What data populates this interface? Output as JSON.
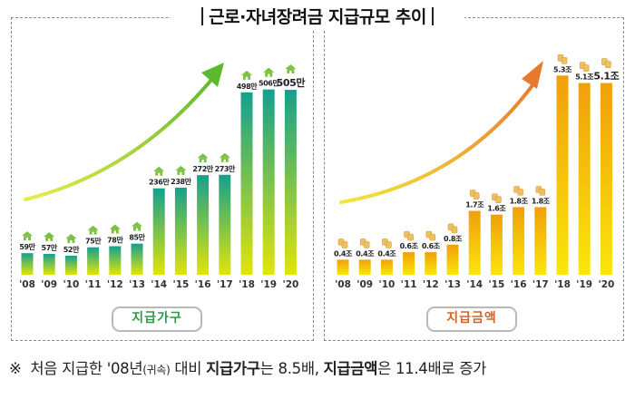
{
  "title": "근로·자녀장려금 지급규모 추이",
  "chart_data": [
    {
      "type": "bar",
      "name": "지급가구",
      "legend": "지급가구",
      "unit_suffix": "만",
      "categories": [
        "'08",
        "'09",
        "'10",
        "'11",
        "'12",
        "'13",
        "'14",
        "'15",
        "'16",
        "'17",
        "'18",
        "'19",
        "'20"
      ],
      "values": [
        59,
        57,
        52,
        75,
        78,
        85,
        236,
        238,
        272,
        273,
        498,
        506,
        505
      ],
      "labels": [
        "59만",
        "57만",
        "52만",
        "75만",
        "78만",
        "85만",
        "236만",
        "238만",
        "272만",
        "273만",
        "498만",
        "506만",
        "505만"
      ],
      "ylim": [
        0,
        520
      ],
      "colors": {
        "top": "#14a08e",
        "bottom": "#e2e40a",
        "arrow": "#5cb82e",
        "arrow_tail": "#e8ec4a",
        "icon": "#7cc242"
      },
      "icon": "house-icon",
      "highlight_last": true,
      "grid": false
    },
    {
      "type": "bar",
      "name": "지급금액",
      "legend": "지급금액",
      "unit_suffix": "조",
      "categories": [
        "'08",
        "'09",
        "'10",
        "'11",
        "'12",
        "'13",
        "'14",
        "'15",
        "'16",
        "'17",
        "'18",
        "'19",
        "'20"
      ],
      "values": [
        0.4,
        0.4,
        0.4,
        0.6,
        0.6,
        0.8,
        1.7,
        1.6,
        1.8,
        1.8,
        5.3,
        5.1,
        5.1
      ],
      "labels": [
        "0.4조",
        "0.4조",
        "0.4조",
        "0.6조",
        "0.6조",
        "0.8조",
        "1.7조",
        "1.6조",
        "1.8조",
        "1.8조",
        "5.3조",
        "5.1조",
        "5.1조"
      ],
      "ylim": [
        0,
        5.5
      ],
      "colors": {
        "top": "#f0a00a",
        "bottom": "#fae60a",
        "arrow": "#e8782a",
        "arrow_tail": "#f2e640",
        "icon": "#f0c060"
      },
      "icon": "coin-stack-icon",
      "highlight_last": true,
      "grid": false
    }
  ],
  "footnote": {
    "mark": "※",
    "p1": "처음 지급한 '08년",
    "p1_small": "(귀속)",
    "p2": " 대비 ",
    "b1": "지급가구",
    "p3": "는 8.5배, ",
    "b2": "지급금액",
    "p4": "은 11.4배로 증가"
  }
}
